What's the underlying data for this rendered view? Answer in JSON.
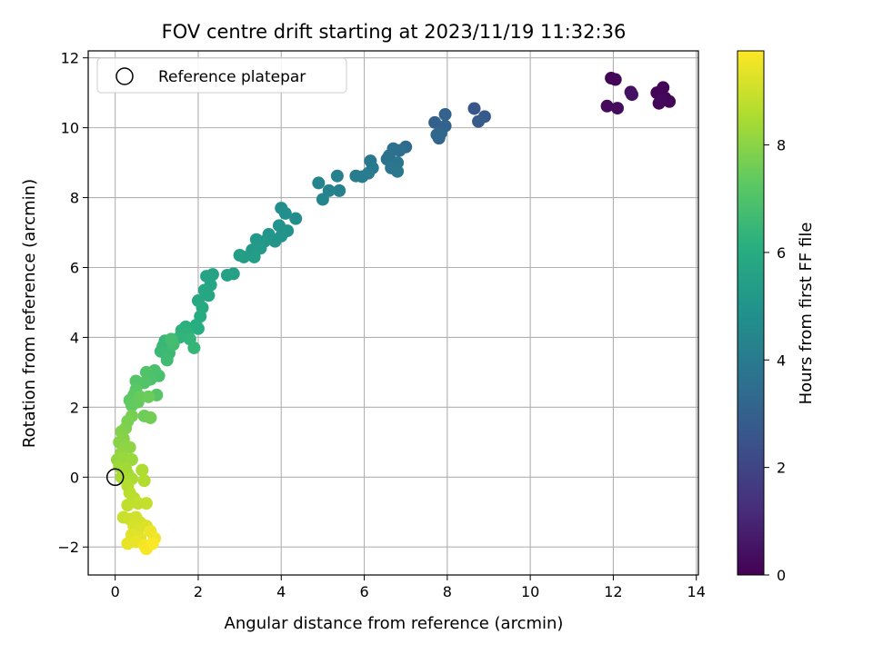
{
  "chart_data": {
    "type": "scatter",
    "title": "FOV centre drift starting at 2023/11/19 11:32:36",
    "xlabel": "Angular distance from reference (arcmin)",
    "ylabel": "Rotation from reference (arcmin)",
    "xlim": [
      -0.65,
      14.05
    ],
    "ylim": [
      -2.8,
      12.2
    ],
    "xticks": [
      0,
      2,
      4,
      6,
      8,
      10,
      12,
      14
    ],
    "yticks": [
      -2,
      0,
      2,
      4,
      6,
      8,
      10,
      12
    ],
    "grid": true,
    "legend": {
      "position": "top-left",
      "entries": [
        "Reference platepar"
      ]
    },
    "reference_point": {
      "x": 0,
      "y": 0
    },
    "colorbar": {
      "label": "Hours from first FF file",
      "range": [
        0,
        9.75
      ],
      "ticks": [
        0,
        2,
        4,
        6,
        8
      ],
      "colormap": "viridis"
    },
    "points": [
      {
        "x": 11.95,
        "y": 11.42,
        "t": 0.1
      },
      {
        "x": 12.05,
        "y": 11.38,
        "t": 0.15
      },
      {
        "x": 11.85,
        "y": 10.62,
        "t": 0.25
      },
      {
        "x": 12.1,
        "y": 10.56,
        "t": 0.3
      },
      {
        "x": 12.42,
        "y": 11.02,
        "t": 0.4
      },
      {
        "x": 12.45,
        "y": 10.95,
        "t": 0.45
      },
      {
        "x": 13.05,
        "y": 11.0,
        "t": 0.05
      },
      {
        "x": 13.2,
        "y": 11.15,
        "t": 0.1
      },
      {
        "x": 13.35,
        "y": 10.75,
        "t": 0.12
      },
      {
        "x": 13.1,
        "y": 10.7,
        "t": 0.15
      },
      {
        "x": 13.25,
        "y": 10.85,
        "t": 0.08
      },
      {
        "x": 13.15,
        "y": 10.8,
        "t": 0.2
      },
      {
        "x": 8.65,
        "y": 10.55,
        "t": 2.6
      },
      {
        "x": 8.9,
        "y": 10.32,
        "t": 2.7
      },
      {
        "x": 8.75,
        "y": 10.18,
        "t": 2.8
      },
      {
        "x": 7.7,
        "y": 10.15,
        "t": 3.0
      },
      {
        "x": 7.95,
        "y": 10.38,
        "t": 3.05
      },
      {
        "x": 7.95,
        "y": 10.05,
        "t": 3.1
      },
      {
        "x": 7.85,
        "y": 9.85,
        "t": 3.15
      },
      {
        "x": 7.8,
        "y": 9.7,
        "t": 3.2
      },
      {
        "x": 7.75,
        "y": 9.8,
        "t": 3.25
      },
      {
        "x": 7.0,
        "y": 9.45,
        "t": 3.4
      },
      {
        "x": 6.85,
        "y": 9.35,
        "t": 3.5
      },
      {
        "x": 6.7,
        "y": 9.4,
        "t": 3.55
      },
      {
        "x": 6.6,
        "y": 9.2,
        "t": 3.6
      },
      {
        "x": 6.55,
        "y": 9.1,
        "t": 3.65
      },
      {
        "x": 6.8,
        "y": 9.0,
        "t": 3.7
      },
      {
        "x": 6.65,
        "y": 8.85,
        "t": 3.8
      },
      {
        "x": 6.8,
        "y": 8.75,
        "t": 3.85
      },
      {
        "x": 6.15,
        "y": 9.05,
        "t": 3.9
      },
      {
        "x": 6.2,
        "y": 8.85,
        "t": 3.95
      },
      {
        "x": 6.1,
        "y": 8.7,
        "t": 4.0
      },
      {
        "x": 5.95,
        "y": 8.6,
        "t": 4.05
      },
      {
        "x": 5.8,
        "y": 8.62,
        "t": 4.1
      },
      {
        "x": 5.35,
        "y": 8.62,
        "t": 4.2
      },
      {
        "x": 5.4,
        "y": 8.2,
        "t": 4.25
      },
      {
        "x": 5.15,
        "y": 8.2,
        "t": 4.3
      },
      {
        "x": 4.9,
        "y": 8.42,
        "t": 4.35
      },
      {
        "x": 5.0,
        "y": 7.95,
        "t": 4.4
      },
      {
        "x": 4.35,
        "y": 7.4,
        "t": 4.7
      },
      {
        "x": 4.0,
        "y": 7.7,
        "t": 4.8
      },
      {
        "x": 4.1,
        "y": 7.55,
        "t": 4.85
      },
      {
        "x": 3.95,
        "y": 7.2,
        "t": 4.9
      },
      {
        "x": 4.15,
        "y": 7.05,
        "t": 4.95
      },
      {
        "x": 4.0,
        "y": 6.9,
        "t": 5.0
      },
      {
        "x": 3.85,
        "y": 6.75,
        "t": 5.05
      },
      {
        "x": 3.7,
        "y": 6.95,
        "t": 5.1
      },
      {
        "x": 3.6,
        "y": 6.75,
        "t": 5.15
      },
      {
        "x": 3.4,
        "y": 6.8,
        "t": 5.2
      },
      {
        "x": 3.3,
        "y": 6.5,
        "t": 5.25
      },
      {
        "x": 3.5,
        "y": 6.55,
        "t": 5.3
      },
      {
        "x": 3.1,
        "y": 6.3,
        "t": 5.35
      },
      {
        "x": 3.35,
        "y": 6.3,
        "t": 5.4
      },
      {
        "x": 3.0,
        "y": 6.35,
        "t": 5.45
      },
      {
        "x": 2.85,
        "y": 5.82,
        "t": 5.5
      },
      {
        "x": 2.7,
        "y": 5.78,
        "t": 5.55
      },
      {
        "x": 2.35,
        "y": 5.8,
        "t": 5.6
      },
      {
        "x": 2.2,
        "y": 5.75,
        "t": 5.65
      },
      {
        "x": 2.3,
        "y": 5.5,
        "t": 5.7
      },
      {
        "x": 2.15,
        "y": 5.35,
        "t": 5.75
      },
      {
        "x": 2.25,
        "y": 5.2,
        "t": 5.8
      },
      {
        "x": 2.0,
        "y": 5.05,
        "t": 5.85
      },
      {
        "x": 2.1,
        "y": 4.85,
        "t": 5.9
      },
      {
        "x": 2.05,
        "y": 4.6,
        "t": 5.95
      },
      {
        "x": 1.95,
        "y": 4.35,
        "t": 6.0
      },
      {
        "x": 2.0,
        "y": 4.25,
        "t": 6.05
      },
      {
        "x": 1.7,
        "y": 4.3,
        "t": 6.15
      },
      {
        "x": 1.6,
        "y": 4.2,
        "t": 6.2
      },
      {
        "x": 1.75,
        "y": 4.1,
        "t": 6.25
      },
      {
        "x": 1.55,
        "y": 4.0,
        "t": 6.3
      },
      {
        "x": 1.8,
        "y": 3.95,
        "t": 6.35
      },
      {
        "x": 1.9,
        "y": 3.7,
        "t": 6.4
      },
      {
        "x": 1.2,
        "y": 3.9,
        "t": 6.45
      },
      {
        "x": 1.15,
        "y": 3.75,
        "t": 6.5
      },
      {
        "x": 1.1,
        "y": 3.6,
        "t": 6.55
      },
      {
        "x": 1.3,
        "y": 3.55,
        "t": 6.6
      },
      {
        "x": 1.25,
        "y": 3.35,
        "t": 6.65
      },
      {
        "x": 1.4,
        "y": 3.8,
        "t": 6.7
      },
      {
        "x": 1.35,
        "y": 3.95,
        "t": 6.75
      },
      {
        "x": 1.05,
        "y": 2.9,
        "t": 6.85
      },
      {
        "x": 0.95,
        "y": 3.05,
        "t": 6.9
      },
      {
        "x": 0.85,
        "y": 2.8,
        "t": 6.95
      },
      {
        "x": 0.75,
        "y": 3.0,
        "t": 7.0
      },
      {
        "x": 0.7,
        "y": 2.7,
        "t": 7.05
      },
      {
        "x": 0.5,
        "y": 2.75,
        "t": 7.1
      },
      {
        "x": 1.0,
        "y": 2.35,
        "t": 7.15
      },
      {
        "x": 0.5,
        "y": 2.5,
        "t": 7.2
      },
      {
        "x": 0.45,
        "y": 2.35,
        "t": 7.25
      },
      {
        "x": 0.35,
        "y": 2.2,
        "t": 7.3
      },
      {
        "x": 0.4,
        "y": 2.05,
        "t": 7.35
      },
      {
        "x": 0.55,
        "y": 2.15,
        "t": 7.4
      },
      {
        "x": 0.6,
        "y": 2.3,
        "t": 7.45
      },
      {
        "x": 0.8,
        "y": 2.3,
        "t": 7.5
      },
      {
        "x": 0.7,
        "y": 1.75,
        "t": 7.55
      },
      {
        "x": 0.85,
        "y": 1.7,
        "t": 7.6
      },
      {
        "x": 0.4,
        "y": 1.75,
        "t": 7.7
      },
      {
        "x": 0.3,
        "y": 1.6,
        "t": 7.75
      },
      {
        "x": 0.25,
        "y": 1.4,
        "t": 7.8
      },
      {
        "x": 0.15,
        "y": 1.3,
        "t": 7.85
      },
      {
        "x": 0.2,
        "y": 1.1,
        "t": 7.9
      },
      {
        "x": 0.1,
        "y": 1.0,
        "t": 7.95
      },
      {
        "x": 0.25,
        "y": 0.9,
        "t": 8.0
      },
      {
        "x": 0.35,
        "y": 0.85,
        "t": 8.05
      },
      {
        "x": 0.15,
        "y": 0.7,
        "t": 8.1
      },
      {
        "x": 0.05,
        "y": 0.5,
        "t": 8.15
      },
      {
        "x": 0.2,
        "y": 0.55,
        "t": 8.2
      },
      {
        "x": 0.4,
        "y": 0.5,
        "t": 8.25
      },
      {
        "x": 0.1,
        "y": 0.3,
        "t": 8.3
      },
      {
        "x": 0.25,
        "y": 0.25,
        "t": 8.35
      },
      {
        "x": 0.3,
        "y": 0.1,
        "t": 8.4
      },
      {
        "x": 0.15,
        "y": 0.0,
        "t": 8.45
      },
      {
        "x": 0.4,
        "y": -0.05,
        "t": 8.5
      },
      {
        "x": 0.65,
        "y": 0.2,
        "t": 8.55
      },
      {
        "x": 0.7,
        "y": -0.1,
        "t": 8.6
      },
      {
        "x": 0.3,
        "y": -0.25,
        "t": 8.65
      },
      {
        "x": 0.35,
        "y": -0.45,
        "t": 8.7
      },
      {
        "x": 0.45,
        "y": -0.6,
        "t": 8.75
      },
      {
        "x": 0.3,
        "y": -0.8,
        "t": 8.8
      },
      {
        "x": 0.55,
        "y": -0.75,
        "t": 8.85
      },
      {
        "x": 0.75,
        "y": -0.75,
        "t": 8.9
      },
      {
        "x": 0.2,
        "y": -1.15,
        "t": 8.95
      },
      {
        "x": 0.35,
        "y": -1.2,
        "t": 9.0
      },
      {
        "x": 0.5,
        "y": -1.15,
        "t": 9.05
      },
      {
        "x": 0.6,
        "y": -1.3,
        "t": 9.1
      },
      {
        "x": 0.45,
        "y": -1.4,
        "t": 9.15
      },
      {
        "x": 0.55,
        "y": -1.5,
        "t": 9.2
      },
      {
        "x": 0.75,
        "y": -1.4,
        "t": 9.25
      },
      {
        "x": 0.4,
        "y": -1.65,
        "t": 9.3
      },
      {
        "x": 0.6,
        "y": -1.75,
        "t": 9.35
      },
      {
        "x": 0.3,
        "y": -1.9,
        "t": 9.4
      },
      {
        "x": 0.5,
        "y": -1.85,
        "t": 9.45
      },
      {
        "x": 0.85,
        "y": -1.55,
        "t": 9.5
      },
      {
        "x": 0.95,
        "y": -1.75,
        "t": 9.55
      },
      {
        "x": 0.7,
        "y": -1.95,
        "t": 9.6
      },
      {
        "x": 0.75,
        "y": -2.05,
        "t": 9.65
      },
      {
        "x": 0.9,
        "y": -1.9,
        "t": 9.7
      }
    ]
  }
}
